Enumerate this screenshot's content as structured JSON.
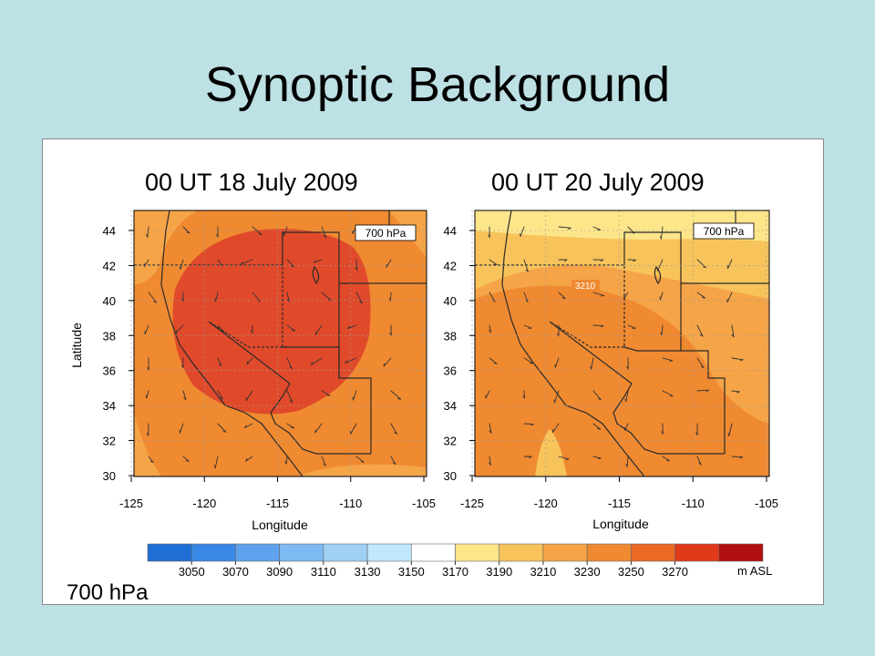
{
  "slide": {
    "title": "Synoptic Background"
  },
  "maps": [
    {
      "title": "00 UT  18 July 2009",
      "level_label": "700 hPa",
      "contour_label": ""
    },
    {
      "title": "00 UT  20 July 2009",
      "level_label": "700 hPa",
      "contour_label": "3210"
    }
  ],
  "axes": {
    "latitude_label": "Latitude",
    "longitude_label": "Longitude",
    "lat_ticks": [
      "44",
      "42",
      "40",
      "38",
      "36",
      "34",
      "32",
      "30"
    ],
    "lon_ticks": [
      "-125",
      "-120",
      "-115",
      "-110",
      "-105"
    ]
  },
  "colorbar": {
    "labels": [
      "3050",
      "3070",
      "3090",
      "3110",
      "3130",
      "3150",
      "3170",
      "3190",
      "3210",
      "3230",
      "3250",
      "3270"
    ],
    "unit": "m ASL",
    "colors": [
      "#1f6fd6",
      "#3a88e6",
      "#5fa2ee",
      "#7dbaf2",
      "#9fd0f6",
      "#bfe8fb",
      "#ffffff",
      "#fde58a",
      "#f7c35a",
      "#f5a447",
      "#f08a31",
      "#ea6a25",
      "#e13a1b",
      "#b01010"
    ]
  },
  "caption": "700 hPa"
}
